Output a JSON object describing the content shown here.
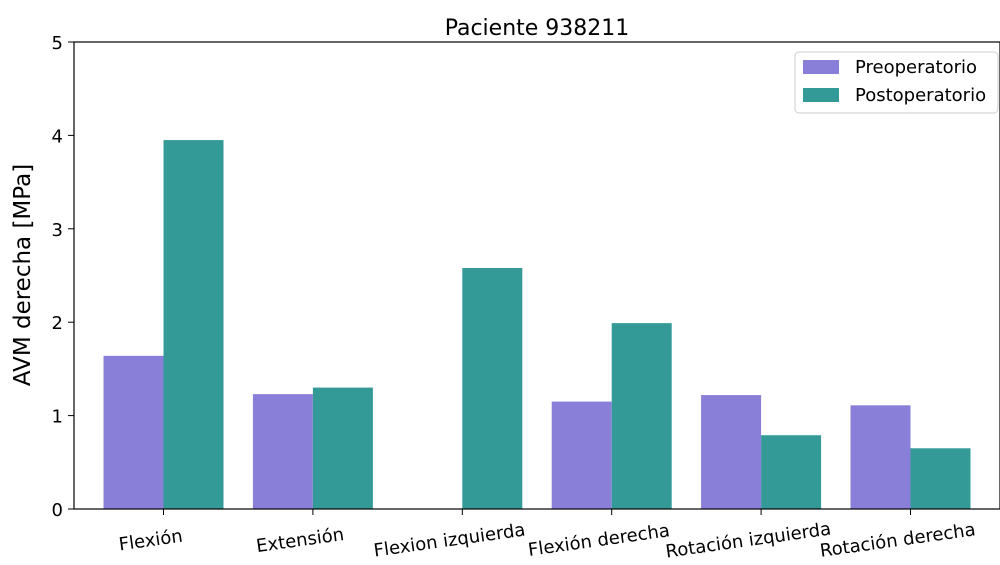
{
  "chart_data": {
    "type": "bar",
    "title": "Paciente 938211",
    "xlabel": "",
    "ylabel": "AVM derecha [MPa]",
    "ylim": [
      0,
      5
    ],
    "yticks": [
      0,
      1,
      2,
      3,
      4,
      5
    ],
    "grid": false,
    "legend_position": "top-right",
    "categories": [
      "Flexión",
      "Extensión",
      "Flexion izquierda",
      "Flexión derecha",
      "Rotación izquierda",
      "Rotación derecha"
    ],
    "series": [
      {
        "name": "Preoperatorio",
        "color": "#8a7fd8",
        "values": [
          1.64,
          1.23,
          0.0,
          1.15,
          1.22,
          1.11
        ]
      },
      {
        "name": "Postoperatorio",
        "color": "#349a98",
        "values": [
          3.95,
          1.3,
          2.58,
          1.99,
          0.79,
          0.65
        ]
      }
    ]
  }
}
